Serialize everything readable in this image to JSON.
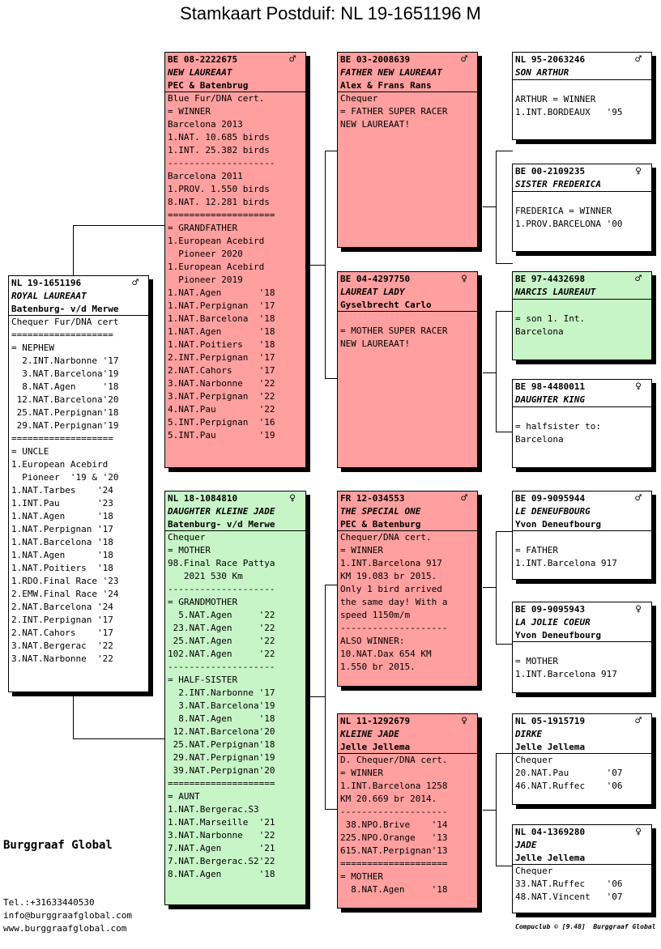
{
  "title": "Stamkaart Postduif: NL  19-1651196 M",
  "cards": {
    "subject": {
      "ring": "NL  19-1651196",
      "sex": "♂",
      "name": "ROYAL LAUREAAT",
      "lines": [
        "Batenburg- v/d Merwe",
        "Chequer Fur/DNA cert",
        "===================",
        "= NEPHEW",
        "  2.INT.Narbonne '17",
        "  3.NAT.Barcelona'19",
        "  8.NAT.Agen     '18",
        " 12.NAT.Barcelona'20",
        " 25.NAT.Perpignan'18",
        " 29.NAT.Perpignan'19",
        "===================",
        "= UNCLE",
        "1.European Acebird",
        "  Pioneer  '19 & '20",
        "1.NAT.Tarbes    '24",
        "1.INT.Pau       '23",
        "1.NAT.Agen      '18",
        "1.NAT.Perpignan '17",
        "1.NAT.Barcelona '18",
        "1.NAT.Agen      '18",
        "1.NAT.Poitiers  '18",
        "1.RDO.Final Race '23",
        "2.EMW.Final Race '24",
        "2.NAT.Barcelona '24",
        "2.INT.Perpignan '17",
        "2.NAT.Cahors    '17",
        "3.NAT.Bergerac  '22",
        "3.NAT.Narbonne  '22"
      ]
    },
    "father": {
      "ring": "BE  08-2222675",
      "sex": "♂",
      "name": "NEW LAUREAAT",
      "lines": [
        "PEC & Batenbrug",
        "Blue Fur/DNA cert.",
        "= WINNER",
        "Barcelona 2013",
        "1.NAT. 10.685 birds",
        "1.INT. 25.382 birds",
        "--------------------",
        "Barcelona 2011",
        "1.PROV. 1.550 birds",
        "8.NAT. 12.281 birds",
        "====================",
        "= GRANDFATHER",
        "1.European Acebird",
        "  Pioneer 2020",
        "1.European Acebird",
        "  Pioneer 2019",
        "1.NAT.Agen       '18",
        "1.NAT.Perpignan  '17",
        "1.NAT.Barcelona  '18",
        "1.NAT.Agen       '18",
        "1.NAT.Poitiers   '18",
        "2.INT.Perpignan  '17",
        "2.NAT.Cahors     '17",
        "3.NAT.Narbonne   '22",
        "3.NAT.Perpignan  '22",
        "4.NAT.Pau        '22",
        "5.INT.Perpignan  '16",
        "5.INT.Pau        '19"
      ]
    },
    "mother": {
      "ring": "NL  18-1084810",
      "sex": "♀",
      "name": "DAUGHTER KLEINE JADE",
      "lines": [
        "Batenburg- v/d Merwe",
        "Chequer",
        "= MOTHER",
        "98.Final Race Pattya",
        "   2021 530 Km",
        "--------------------",
        "= GRANDMOTHER",
        "  5.NAT.Agen     '22",
        " 23.NAT.Agen     '22",
        " 25.NAT.Agen     '22",
        "102.NAT.Agen     '22",
        "--------------------",
        "= HALF-SISTER",
        "  2.INT.Narbonne '17",
        "  3.NAT.Barcelona'19",
        "  8.NAT.Agen     '18",
        " 12.NAT.Barcelona'20",
        " 25.NAT.Perpignan'18",
        " 29.NAT.Perpignan'19",
        " 39.NAT.Perpignan'20",
        "====================",
        "= AUNT",
        "1.NAT.Bergerac.S3",
        "1.NAT.Marseille  '21",
        "3.NAT.Narbonne   '22",
        "7.NAT.Agen       '21",
        "7.NAT.Bergerac.S2'22",
        "8.NAT.Agen       '18"
      ]
    },
    "ff": {
      "ring": "BE  03-2008639",
      "sex": "♂",
      "name": "FATHER NEW LAUREAAT",
      "lines": [
        "Alex & Frans Rans",
        "Chequer",
        "= FATHER SUPER RACER",
        "NEW LAUREAAT!"
      ]
    },
    "fm": {
      "ring": "BE  04-4297750",
      "sex": "♀",
      "name": "LAUREAT LADY",
      "lines": [
        "Gyselbrecht Carlo",
        "",
        "= MOTHER SUPER RACER",
        "NEW LAUREAAT!"
      ]
    },
    "mf": {
      "ring": "FR  12-034553",
      "sex": "♂",
      "name": "THE SPECIAL ONE",
      "lines": [
        "PEC & Batenburg",
        "Chequer/DNA cert.",
        "= WINNER",
        "1.INT.Barcelona 917",
        "KM 19.083 br 2015.",
        "Only 1 bird arrived",
        "the same day! With a",
        "speed 1150m/m",
        "--------------------",
        "ALSO WINNER:",
        "10.NAT.Dax 654 KM",
        "1.550 br 2015."
      ]
    },
    "mm": {
      "ring": "NL  11-1292679",
      "sex": "♀",
      "name": "KLEINE JADE",
      "lines": [
        "Jelle Jellema",
        "D. Chequer/DNA cert.",
        "= WINNER",
        "1.INT.Barcelona 1258",
        "KM 20.669 br 2014.",
        "--------------------",
        " 38.NPO.Brive    '14",
        "225.NPO.Orange   '13",
        "615.NAT.Perpignan'13",
        "====================",
        "= MOTHER",
        "  8.NAT.Agen     '18"
      ]
    },
    "fff": {
      "ring": "NL  95-2063246",
      "sex": "♂",
      "name": "SON ARTHUR",
      "lines": [
        "",
        "ARTHUR = WINNER",
        "1.INT.BORDEAUX   '95"
      ]
    },
    "ffm": {
      "ring": "BE  00-2109235",
      "sex": "♀",
      "name": "SISTER FREDERICA",
      "lines": [
        "",
        "FREDERICA = WINNER",
        "1.PROV.BARCELONA '00"
      ]
    },
    "fmf": {
      "ring": "BE  97-4432698",
      "sex": "♂",
      "name": "NARCIS LAUREAUT",
      "lines": [
        "",
        "= son 1. Int.",
        "Barcelona"
      ]
    },
    "fmm": {
      "ring": "BE  98-4480011",
      "sex": "♀",
      "name": "DAUGHTER KING",
      "lines": [
        "",
        "= halfsister to:",
        "Barcelona"
      ]
    },
    "mff": {
      "ring": "BE  09-9095944",
      "sex": "♂",
      "name": "LE DENEUFBOURG",
      "lines": [
        "Yvon Deneufbourg",
        "",
        "= FATHER",
        "1.INT.Barcelona 917"
      ]
    },
    "mfm": {
      "ring": "BE  09-9095943",
      "sex": "♀",
      "name": "LA JOLIE COEUR",
      "lines": [
        "Yvon Deneufbourg",
        "",
        "= MOTHER",
        "1.INT.Barcelona 917"
      ]
    },
    "mmf": {
      "ring": "NL  05-1915719",
      "sex": "♂",
      "name": "DIRKE",
      "lines": [
        "Jelle Jellema",
        "Chequer",
        "20.NAT.Pau       '07",
        "46.NAT.Ruffec    '06"
      ]
    },
    "mmm": {
      "ring": "NL  04-1369280",
      "sex": "♀",
      "name": "JADE",
      "lines": [
        "Jelle Jellema",
        "Chequer",
        "33.NAT.Ruffec    '06",
        "48.NAT.Vincent   '07"
      ]
    }
  },
  "brand": "Burggraaf Global",
  "contact": {
    "tel": "Tel.:+31633440530",
    "email": "info@burggraafglobal.com",
    "web": "www.burggraafglobal.com"
  },
  "footer": "Compuclub © [9.48]  Burggraaf Global"
}
